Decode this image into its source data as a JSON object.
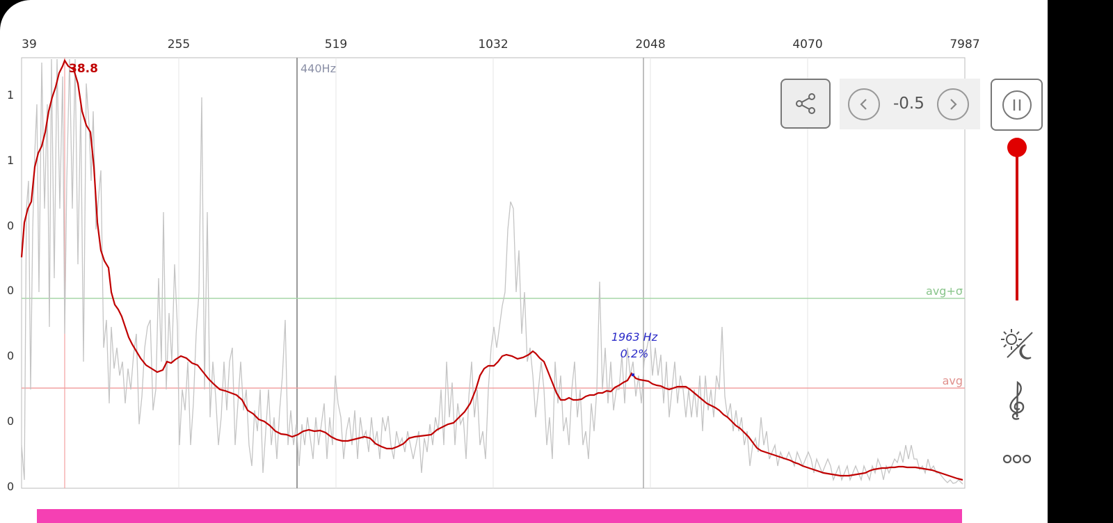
{
  "x_axis": {
    "ticks": [
      "39",
      "255",
      "519",
      "1032",
      "2048",
      "4070",
      "7987"
    ]
  },
  "y_axis": {
    "ticks": [
      "1",
      "1",
      "0",
      "0",
      "0",
      "0",
      "0"
    ]
  },
  "annotations": {
    "peak_label": "38.8",
    "reference_label": "440Hz",
    "avg_sigma_label": "avg+σ",
    "avg_label": "avg",
    "cursor_freq": "1963 Hz",
    "cursor_pct": "0.2%"
  },
  "controls": {
    "offset_value": "-0.5"
  },
  "icons": {
    "share": "share-icon",
    "prev": "chevron-left-icon",
    "next": "chevron-right-icon",
    "pause": "pause-icon",
    "theme": "day-night-icon",
    "clef": "treble-clef-icon",
    "more": "more-dots-icon"
  },
  "colors": {
    "smooth_curve": "#c00000",
    "raw_curve": "#bdbdbd",
    "avg_line": "#f2a0a0",
    "avg_sigma_line": "#a5d6a7",
    "slider": "#e00000",
    "bottom_bar": "#f540b3",
    "cursor_text": "#2a2ac8"
  }
}
